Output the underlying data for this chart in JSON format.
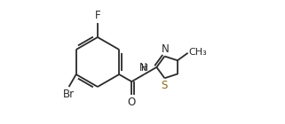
{
  "bg_color": "#ffffff",
  "bond_color": "#2a2a2a",
  "atom_colors": {
    "F": "#2a2a2a",
    "Br": "#2a2a2a",
    "O": "#2a2a2a",
    "N": "#2a2a2a",
    "H": "#2a2a2a",
    "S": "#8B6914",
    "C": "#2a2a2a",
    "CH3": "#2a2a2a"
  },
  "line_width": 1.3,
  "font_size": 8.5
}
